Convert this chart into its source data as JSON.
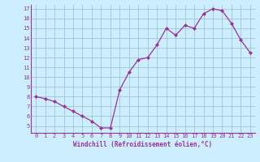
{
  "x": [
    0,
    1,
    2,
    3,
    4,
    5,
    6,
    7,
    8,
    9,
    10,
    11,
    12,
    13,
    14,
    15,
    16,
    17,
    18,
    19,
    20,
    21,
    22,
    23
  ],
  "y": [
    8.0,
    7.8,
    7.5,
    7.0,
    6.5,
    6.0,
    5.5,
    4.8,
    4.8,
    8.7,
    10.5,
    11.8,
    12.0,
    13.3,
    15.0,
    14.3,
    15.3,
    15.0,
    16.5,
    17.0,
    16.8,
    15.5,
    13.8,
    12.5
  ],
  "xlabel": "Windchill (Refroidissement éolien,°C)",
  "ylim_min": 4.3,
  "ylim_max": 17.4,
  "xlim_min": -0.5,
  "xlim_max": 23.5,
  "yticks": [
    5,
    6,
    7,
    8,
    9,
    10,
    11,
    12,
    13,
    14,
    15,
    16,
    17
  ],
  "xticks": [
    0,
    1,
    2,
    3,
    4,
    5,
    6,
    7,
    8,
    9,
    10,
    11,
    12,
    13,
    14,
    15,
    16,
    17,
    18,
    19,
    20,
    21,
    22,
    23
  ],
  "line_color": "#993399",
  "marker": "D",
  "markersize": 2.0,
  "bg_color": "#cceeff",
  "grid_color": "#99bbcc",
  "xlabel_color": "#993399",
  "tick_color": "#993399",
  "tick_fontsize": 5.0,
  "xlabel_fontsize": 5.5,
  "linewidth": 0.9
}
